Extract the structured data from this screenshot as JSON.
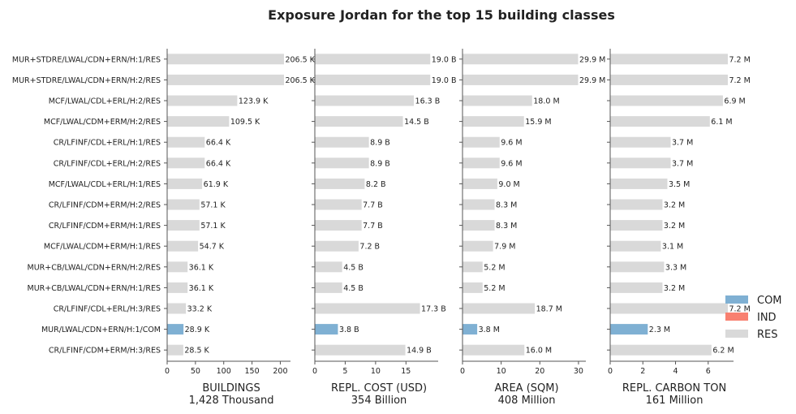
{
  "chart_data": {
    "type": "bar",
    "title": "Exposure Jordan for the top 15 building classes",
    "categories": [
      "MUR+STDRE/LWAL/CDN+ERN/H:1/RES",
      "MUR+STDRE/LWAL/CDN+ERN/H:2/RES",
      "MCF/LWAL/CDL+ERL/H:2/RES",
      "MCF/LWAL/CDM+ERM/H:2/RES",
      "CR/LFINF/CDL+ERL/H:1/RES",
      "CR/LFINF/CDL+ERL/H:2/RES",
      "MCF/LWAL/CDL+ERL/H:1/RES",
      "CR/LFINF/CDM+ERM/H:2/RES",
      "CR/LFINF/CDM+ERM/H:1/RES",
      "MCF/LWAL/CDM+ERM/H:1/RES",
      "MUR+CB/LWAL/CDN+ERN/H:2/RES",
      "MUR+CB/LWAL/CDN+ERN/H:1/RES",
      "CR/LFINF/CDL+ERL/H:3/RES",
      "MUR/LWAL/CDN+ERN/H:1/COM",
      "CR/LFINF/CDM+ERM/H:3/RES"
    ],
    "occupancy": [
      "RES",
      "RES",
      "RES",
      "RES",
      "RES",
      "RES",
      "RES",
      "RES",
      "RES",
      "RES",
      "RES",
      "RES",
      "RES",
      "COM",
      "RES"
    ],
    "colors": {
      "COM": "#7fb0d3",
      "IND": "#f88070",
      "RES": "#d9d9d9"
    },
    "legend": {
      "position": "right",
      "entries": [
        "COM",
        "IND",
        "RES"
      ]
    },
    "panels": [
      {
        "xlabel": "BUILDINGS",
        "total": "1,428 Thousand",
        "xlim": [
          0,
          218
        ],
        "ticks": [
          0,
          50,
          100,
          150,
          200
        ],
        "values": [
          206.5,
          206.5,
          123.9,
          109.5,
          66.4,
          66.4,
          61.9,
          57.1,
          57.1,
          54.7,
          36.1,
          36.1,
          33.2,
          28.9,
          28.5
        ],
        "labels": [
          "206.5 K",
          "206.5 K",
          "123.9 K",
          "109.5 K",
          "66.4 K",
          "66.4 K",
          "61.9 K",
          "57.1 K",
          "57.1 K",
          "54.7 K",
          "36.1 K",
          "36.1 K",
          "33.2 K",
          "28.9 K",
          "28.5 K"
        ]
      },
      {
        "xlabel": "REPL. COST (USD)",
        "total": "354 Billion",
        "xlim": [
          0,
          20.3
        ],
        "ticks": [
          0,
          5,
          10,
          15
        ],
        "values": [
          19.0,
          19.0,
          16.3,
          14.5,
          8.9,
          8.9,
          8.2,
          7.7,
          7.7,
          7.2,
          4.5,
          4.5,
          17.3,
          3.8,
          14.9
        ],
        "labels": [
          "19.0 B",
          "19.0 B",
          "16.3 B",
          "14.5 B",
          "8.9 B",
          "8.9 B",
          "8.2 B",
          "7.7 B",
          "7.7 B",
          "7.2 B",
          "4.5 B",
          "4.5 B",
          "17.3 B",
          "3.8 B",
          "14.9 B"
        ]
      },
      {
        "xlabel": "AREA (SQM)",
        "total": "408 Million",
        "xlim": [
          0,
          31.9
        ],
        "ticks": [
          0,
          10,
          20,
          30
        ],
        "values": [
          29.9,
          29.9,
          18.0,
          15.9,
          9.6,
          9.6,
          9.0,
          8.3,
          8.3,
          7.9,
          5.2,
          5.2,
          18.7,
          3.8,
          16.0
        ],
        "labels": [
          "29.9 M",
          "29.9 M",
          "18.0 M",
          "15.9 M",
          "9.6 M",
          "9.6 M",
          "9.0 M",
          "8.3 M",
          "8.3 M",
          "7.9 M",
          "5.2 M",
          "5.2 M",
          "18.7 M",
          "3.8 M",
          "16.0 M"
        ]
      },
      {
        "xlabel": "REPL. CARBON TON",
        "total": "161 Million",
        "xlim": [
          0,
          7.55
        ],
        "ticks": [
          0,
          2,
          4,
          6
        ],
        "values": [
          7.2,
          7.2,
          6.9,
          6.1,
          3.7,
          3.7,
          3.5,
          3.2,
          3.2,
          3.1,
          3.3,
          3.2,
          7.2,
          2.3,
          6.2
        ],
        "labels": [
          "7.2 M",
          "7.2 M",
          "6.9 M",
          "6.1 M",
          "3.7 M",
          "3.7 M",
          "3.5 M",
          "3.2 M",
          "3.2 M",
          "3.1 M",
          "3.3 M",
          "3.2 M",
          "7.2 M",
          "2.3 M",
          "6.2 M"
        ]
      }
    ]
  }
}
